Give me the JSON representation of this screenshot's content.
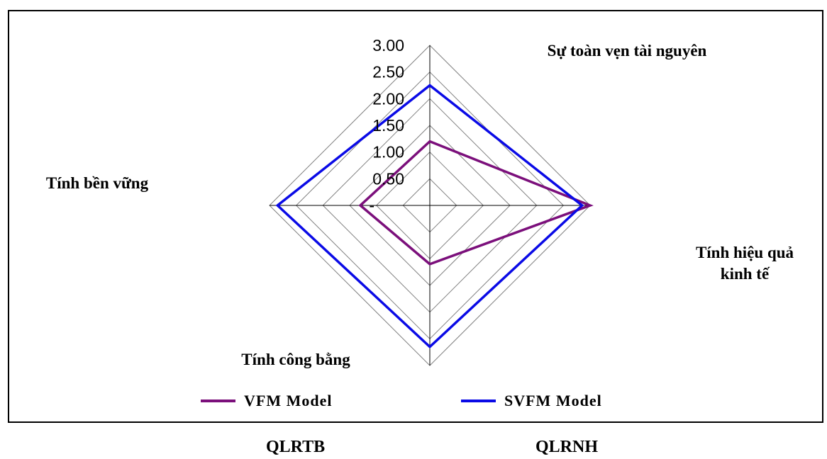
{
  "chart_data": {
    "type": "radar",
    "axes": [
      "Sự toàn vẹn tài nguyên",
      "Tính hiệu quả kinh tế",
      "Tính công bằng",
      "Tính bền vững"
    ],
    "axis_label_lines": [
      [
        "Sự toàn vẹn tài nguyên"
      ],
      [
        "Tính hiệu quả",
        "kinh tế"
      ],
      [
        "Tính công bằng"
      ],
      [
        "Tính bền vững"
      ]
    ],
    "rmax": 3.0,
    "ticks": [
      0,
      0.5,
      1.0,
      1.5,
      2.0,
      2.5,
      3.0
    ],
    "tick_labels": [
      "-",
      "0.50",
      "1.00",
      "1.50",
      "2.00",
      "2.50",
      "3.00"
    ],
    "series": [
      {
        "name": "VFM Model",
        "color": "#7b0f7b",
        "values": [
          1.2,
          3.0,
          1.1,
          1.3
        ]
      },
      {
        "name": "SVFM Model",
        "color": "#0a0ae6",
        "values": [
          2.25,
          2.85,
          2.65,
          2.85
        ]
      }
    ],
    "grid": true,
    "gridline_color": "#808080",
    "legend_position": "bottom"
  },
  "footer": {
    "left": "QLRTB",
    "right": "QLRNH"
  }
}
